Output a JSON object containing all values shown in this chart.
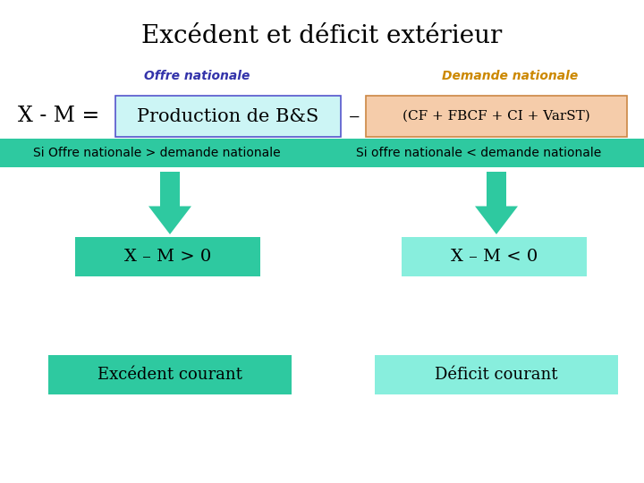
{
  "title": "Excédent et déficit extérieur",
  "title_fontsize": 20,
  "title_color": "#000000",
  "background_color": "#ffffff",
  "offre_label": "Offre nationale",
  "offre_color": "#3333aa",
  "demande_label": "Demande nationale",
  "demande_color": "#cc8800",
  "formula_left": "X - M = ",
  "formula_box1_text": "Production de B&S",
  "formula_box1_bg": "#ccf5f5",
  "formula_box1_edge": "#5555cc",
  "formula_minus": "–",
  "formula_box2_text": "(CF + FBCF + CI + VarST)",
  "formula_box2_bg": "#f5ccaa",
  "formula_box2_edge": "#cc8844",
  "banner_bg": "#2ec9a0",
  "banner_text_left": "Si Offre nationale > demande nationale",
  "banner_text_right": "Si offre nationale < demande nationale",
  "banner_text_color": "#000000",
  "arrow_color": "#2ec9a0",
  "box_left_text": "X – M > 0",
  "box_right_text": "X – M < 0",
  "box_left_bg": "#2ec9a0",
  "box_right_bg": "#88eedd",
  "box_text_color": "#000000",
  "bottom_left_text": "Excédent courant",
  "bottom_right_text": "Déficit courant",
  "bottom_left_bg": "#2ec9a0",
  "bottom_right_bg": "#88eedd"
}
